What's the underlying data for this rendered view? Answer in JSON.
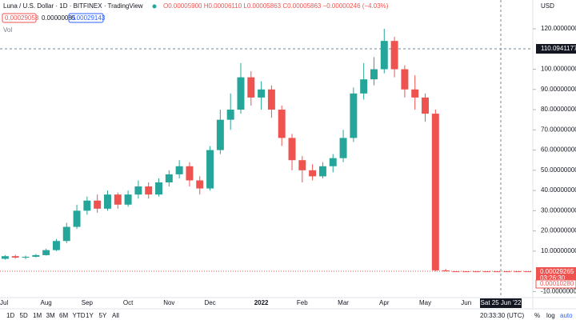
{
  "ui": {
    "symbol": "Luna / U.S. Dollar · 1D · BITFINEX · TradingView",
    "ohlc": "O0.00005900 H0.00006110 L0.00005863 C0.00005863 −0.00000246 (−4.03%)",
    "bid": "0.00029058",
    "spread": "0.00000085",
    "ask": "0.00029143",
    "vol": "Vol",
    "currency": "USD",
    "crosshair_price": "110.09411779",
    "last_price": "0.00029265",
    "countdown": "03:26:30",
    "low_price": "0.00010280",
    "crosshair_date": "Sat 25 Jun '22",
    "ranges": [
      "1D",
      "5D",
      "1M",
      "3M",
      "6M",
      "YTD",
      "1Y",
      "5Y",
      "All"
    ],
    "clock": "20:33:30 (UTC)",
    "percent": "%",
    "log": "log",
    "auto": "auto"
  },
  "chart_data": {
    "type": "candlestick",
    "up_color": "#26a69a",
    "down_color": "#ef5350",
    "grid": false,
    "categories": [
      "Jul",
      null,
      null,
      null,
      "Aug",
      null,
      null,
      null,
      "Sep",
      null,
      null,
      null,
      "Oct",
      null,
      null,
      null,
      "Nov",
      null,
      null,
      null,
      "Dec",
      null,
      null,
      null,
      null,
      "2022",
      null,
      null,
      null,
      "Feb",
      null,
      null,
      null,
      "Mar",
      null,
      null,
      null,
      "Apr",
      null,
      null,
      null,
      "May",
      null,
      null,
      null,
      "Jun",
      null,
      null,
      null,
      null,
      null,
      null
    ],
    "open": [
      6.2,
      7.5,
      6.8,
      7.2,
      8.0,
      10.5,
      15,
      22,
      30,
      35,
      31,
      38,
      33,
      38,
      42,
      38,
      44,
      48,
      52,
      45,
      41,
      60,
      75,
      80,
      96,
      86,
      90,
      80,
      66,
      55,
      50,
      47,
      52,
      56,
      66,
      88,
      95,
      100,
      114,
      100,
      90,
      86,
      78,
      0.5,
      0.0003,
      0.0003,
      0.0003,
      0.0003,
      0.0003,
      0.0003,
      0.0003,
      0.0003
    ],
    "high": [
      8.0,
      8.2,
      7.8,
      8.6,
      11.2,
      16,
      24,
      33,
      37,
      38,
      40,
      39,
      40,
      45,
      44,
      46,
      50,
      55,
      54,
      47,
      62,
      80,
      88,
      103,
      99,
      94,
      92,
      82,
      68,
      57,
      53,
      54,
      58,
      70,
      91,
      103,
      106,
      120,
      116,
      102,
      97,
      88,
      80,
      1.2,
      0.0003,
      0.0003,
      0.0003,
      0.0003,
      0.0003,
      0.0003,
      0.0003,
      0.0003
    ],
    "low": [
      5.8,
      6.3,
      6.0,
      6.9,
      7.8,
      10,
      14,
      21,
      28,
      29,
      30,
      31,
      32,
      36,
      36,
      37,
      42,
      46,
      42,
      38,
      40,
      58,
      70,
      78,
      82,
      80,
      76,
      62,
      50,
      44,
      45,
      46,
      49,
      54,
      64,
      85,
      92,
      98,
      96,
      86,
      80,
      74,
      0.0006,
      0.0001,
      0.00029,
      0.00029,
      0.00029,
      0.00029,
      0.00029,
      0.00029,
      0.00029,
      0.00029
    ],
    "close": [
      7.5,
      6.8,
      7.2,
      8.0,
      10.5,
      15,
      22,
      30,
      35,
      31,
      38,
      33,
      38,
      42,
      38,
      44,
      48,
      52,
      45,
      41,
      60,
      75,
      80,
      96,
      86,
      90,
      80,
      66,
      55,
      50,
      47,
      52,
      56,
      66,
      88,
      95,
      100,
      114,
      100,
      90,
      86,
      78,
      0.5,
      0.0003,
      0.00029,
      0.00029,
      0.00029,
      0.00029,
      0.00029,
      0.00029,
      0.00029,
      0.00029265
    ],
    "ylim": [
      -13,
      129.5
    ],
    "yticks": [
      {
        "value": -10,
        "label": "-10.00000000"
      },
      {
        "value": 10,
        "label": "10.00000000"
      },
      {
        "value": 20,
        "label": "20.00000000"
      },
      {
        "value": 30,
        "label": "30.00000000"
      },
      {
        "value": 40,
        "label": "40.00000000"
      },
      {
        "value": 50,
        "label": "50.00000000"
      },
      {
        "value": 60,
        "label": "60.00000000"
      },
      {
        "value": 70,
        "label": "70.00000000"
      },
      {
        "value": 80,
        "label": "80.00000000"
      },
      {
        "value": 90,
        "label": "90.00000000"
      },
      {
        "value": 100,
        "label": "100.00000000"
      },
      {
        "value": 120,
        "label": "120.00000000"
      }
    ]
  }
}
